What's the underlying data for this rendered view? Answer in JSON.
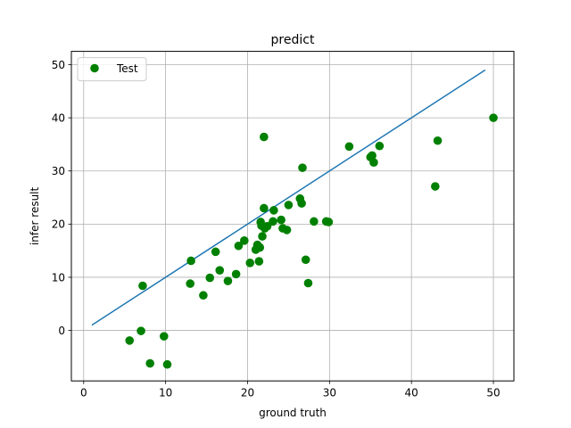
{
  "chart_data": {
    "type": "scatter",
    "title": "predict",
    "xlabel": "ground truth",
    "ylabel": "infer result",
    "xlim": [
      -1.5,
      52.5
    ],
    "ylim": [
      -9.5,
      52.5
    ],
    "xticks": [
      0,
      10,
      20,
      30,
      40,
      50
    ],
    "yticks": [
      0,
      10,
      20,
      30,
      40,
      50
    ],
    "grid": true,
    "legend": {
      "position": "top-left",
      "entries": [
        "Test"
      ]
    },
    "series": [
      {
        "name": "Test",
        "kind": "scatter",
        "color": "#008000",
        "points": [
          [
            5.6,
            -1.9
          ],
          [
            7.0,
            -0.1
          ],
          [
            8.1,
            -6.2
          ],
          [
            9.8,
            -1.1
          ],
          [
            10.2,
            -6.4
          ],
          [
            7.2,
            8.4
          ],
          [
            13.1,
            13.1
          ],
          [
            13.0,
            8.8
          ],
          [
            14.6,
            6.6
          ],
          [
            15.4,
            9.9
          ],
          [
            16.1,
            14.8
          ],
          [
            16.6,
            11.3
          ],
          [
            17.6,
            9.3
          ],
          [
            18.6,
            10.6
          ],
          [
            18.9,
            15.9
          ],
          [
            19.6,
            16.9
          ],
          [
            20.3,
            12.7
          ],
          [
            21.0,
            15.2
          ],
          [
            21.2,
            16.1
          ],
          [
            21.4,
            13.0
          ],
          [
            21.5,
            15.6
          ],
          [
            21.6,
            20.4
          ],
          [
            21.7,
            19.7
          ],
          [
            21.8,
            17.7
          ],
          [
            22.0,
            36.4
          ],
          [
            22.0,
            23.0
          ],
          [
            22.1,
            19.2
          ],
          [
            22.4,
            19.6
          ],
          [
            23.1,
            20.5
          ],
          [
            23.2,
            22.6
          ],
          [
            24.1,
            20.8
          ],
          [
            24.3,
            19.2
          ],
          [
            24.8,
            18.9
          ],
          [
            25.0,
            23.6
          ],
          [
            26.4,
            24.8
          ],
          [
            26.6,
            23.9
          ],
          [
            26.7,
            30.6
          ],
          [
            27.1,
            13.3
          ],
          [
            27.4,
            8.9
          ],
          [
            28.1,
            20.5
          ],
          [
            29.6,
            20.5
          ],
          [
            29.9,
            20.4
          ],
          [
            32.4,
            34.6
          ],
          [
            35.0,
            32.6
          ],
          [
            35.2,
            32.9
          ],
          [
            35.4,
            31.6
          ],
          [
            36.1,
            34.7
          ],
          [
            42.9,
            27.1
          ],
          [
            43.2,
            35.7
          ],
          [
            50.0,
            40.0
          ]
        ]
      },
      {
        "name": "",
        "kind": "line",
        "color": "#1f77b4",
        "points": [
          [
            1,
            1
          ],
          [
            49,
            49
          ]
        ]
      }
    ]
  }
}
